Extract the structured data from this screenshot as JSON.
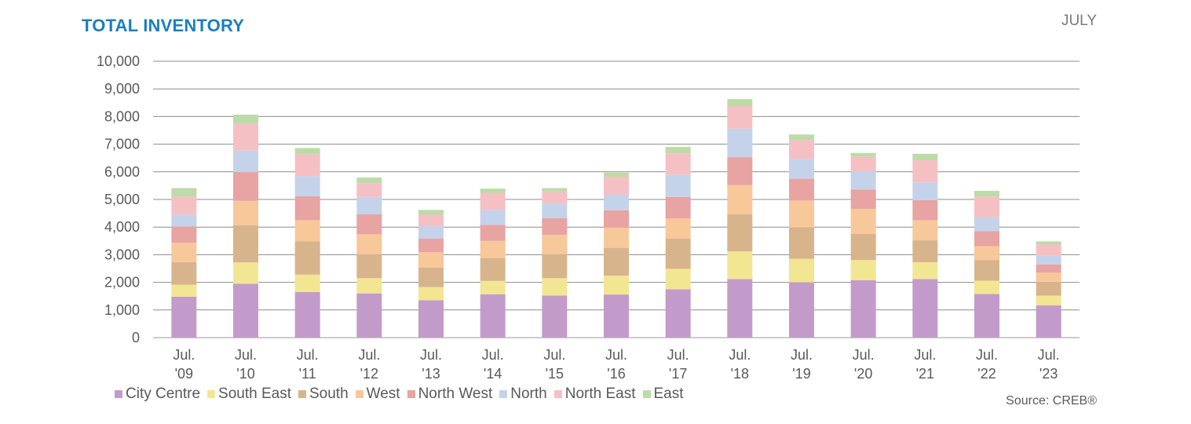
{
  "header": {
    "title": "TOTAL INVENTORY",
    "month": "JULY"
  },
  "footer": {
    "source": "Source: CREB®"
  },
  "chart_data": {
    "type": "bar",
    "stacked": true,
    "title": "TOTAL INVENTORY",
    "categories": [
      [
        "Jul.",
        "'09"
      ],
      [
        "Jul.",
        "'10"
      ],
      [
        "Jul.",
        "'11"
      ],
      [
        "Jul.",
        "'12"
      ],
      [
        "Jul.",
        "'13"
      ],
      [
        "Jul.",
        "'14"
      ],
      [
        "Jul.",
        "'15"
      ],
      [
        "Jul.",
        "'16"
      ],
      [
        "Jul.",
        "'17"
      ],
      [
        "Jul.",
        "'18"
      ],
      [
        "Jul.",
        "'19"
      ],
      [
        "Jul.",
        "'20"
      ],
      [
        "Jul.",
        "'21"
      ],
      [
        "Jul.",
        "'22"
      ],
      [
        "Jul.",
        "'23"
      ]
    ],
    "ylim": [
      0,
      10000
    ],
    "yticks": [
      0,
      1000,
      2000,
      3000,
      4000,
      5000,
      6000,
      7000,
      8000,
      9000,
      10000
    ],
    "ytick_labels": [
      "0",
      "1,000",
      "2,000",
      "3,000",
      "4,000",
      "5,000",
      "6,000",
      "7,000",
      "8,000",
      "9,000",
      "10,000"
    ],
    "grid": true,
    "legend_position": "bottom-left",
    "series": [
      {
        "name": "City Centre",
        "color": "#c39bcb",
        "values": [
          1480,
          1950,
          1650,
          1600,
          1350,
          1570,
          1520,
          1560,
          1750,
          2120,
          2000,
          2080,
          2120,
          1580,
          1170
        ]
      },
      {
        "name": "South East",
        "color": "#f2e693",
        "values": [
          430,
          770,
          630,
          550,
          480,
          480,
          630,
          680,
          740,
          1000,
          850,
          730,
          610,
          480,
          350
        ]
      },
      {
        "name": "South",
        "color": "#d8b48c",
        "values": [
          820,
          1350,
          1200,
          870,
          700,
          830,
          870,
          1010,
          1090,
          1340,
          1140,
          940,
          790,
          750,
          500
        ]
      },
      {
        "name": "West",
        "color": "#f7c89a",
        "values": [
          700,
          880,
          770,
          720,
          560,
          620,
          700,
          730,
          730,
          1060,
          970,
          910,
          730,
          500,
          330
        ]
      },
      {
        "name": "North West",
        "color": "#e8a3a3",
        "values": [
          590,
          1040,
          870,
          720,
          490,
          580,
          600,
          630,
          780,
          1010,
          790,
          700,
          730,
          540,
          300
        ]
      },
      {
        "name": "North",
        "color": "#c4d3ea",
        "values": [
          430,
          780,
          730,
          630,
          450,
          540,
          530,
          560,
          800,
          1030,
          720,
          660,
          640,
          500,
          310
        ]
      },
      {
        "name": "North East",
        "color": "#f5c0c4",
        "values": [
          660,
          980,
          790,
          500,
          430,
          610,
          440,
          640,
          780,
          820,
          680,
          530,
          800,
          760,
          420
        ]
      },
      {
        "name": "East",
        "color": "#bcdba6",
        "values": [
          300,
          320,
          220,
          200,
          160,
          160,
          120,
          160,
          230,
          250,
          200,
          130,
          230,
          200,
          100
        ]
      }
    ]
  }
}
